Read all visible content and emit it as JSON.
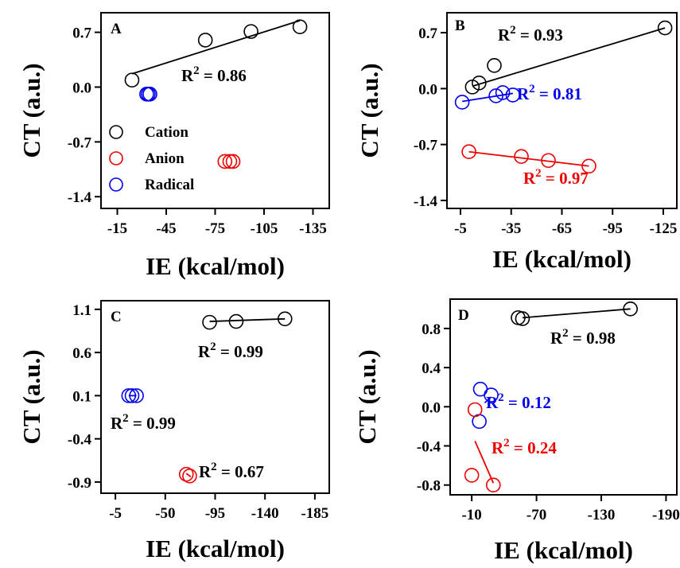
{
  "chart_data": [
    {
      "panel": "A",
      "type": "scatter",
      "xlabel": "IE (kcal/mol)",
      "ylabel": "CT (a.u.)",
      "xlim": [
        -5,
        -145
      ],
      "ylim": [
        -1.55,
        0.95
      ],
      "xticks": [
        -15,
        -45,
        -75,
        -105,
        -135
      ],
      "yticks": [
        0.7,
        0.0,
        -0.7,
        -1.4
      ],
      "xtick_labels": [
        "-15",
        "-45",
        "-75",
        "-105",
        "-135"
      ],
      "ytick_labels": [
        "0.7",
        "0.0",
        "-0.7",
        "-1.4"
      ],
      "legend": {
        "position": "left",
        "entries": [
          {
            "label": "Cation",
            "color": "#000000"
          },
          {
            "label": "Anion",
            "color": "#ee0000"
          },
          {
            "label": "Radical",
            "color": "#0000ee"
          }
        ]
      },
      "series": [
        {
          "name": "Cation",
          "color": "#000000",
          "points": [
            {
              "x": -24,
              "y": 0.09
            },
            {
              "x": -69,
              "y": 0.6
            },
            {
              "x": -97,
              "y": 0.71
            },
            {
              "x": -127,
              "y": 0.77
            }
          ],
          "fit": {
            "x": [
              -24,
              -127
            ],
            "y": [
              0.17,
              0.85
            ]
          },
          "r2": "R² = 0.86"
        },
        {
          "name": "Anion",
          "color": "#ee0000",
          "points": [
            {
              "x": -81,
              "y": -0.95
            },
            {
              "x": -84,
              "y": -0.95
            },
            {
              "x": -86,
              "y": -0.95
            }
          ],
          "fit": null
        },
        {
          "name": "Radical",
          "color": "#0000ee",
          "points": [
            {
              "x": -33,
              "y": -0.09
            },
            {
              "x": -34,
              "y": -0.09
            },
            {
              "x": -35,
              "y": -0.09
            }
          ],
          "fit": null
        }
      ],
      "r2_labels": [
        {
          "text": "R",
          "sup": "2",
          "rest": " = 0.86",
          "color": "#000000"
        }
      ]
    },
    {
      "panel": "B",
      "type": "scatter",
      "xlabel": "IE (kcal/mol)",
      "ylabel": "CT (a.u.)",
      "xlim": [
        3,
        -133
      ],
      "ylim": [
        -1.5,
        0.95
      ],
      "xticks": [
        -5,
        -35,
        -65,
        -95,
        -125
      ],
      "yticks": [
        0.7,
        0.0,
        -0.7,
        -1.4
      ],
      "xtick_labels": [
        "-5",
        "-35",
        "-65",
        "-95",
        "-125"
      ],
      "ytick_labels": [
        "0.7",
        "0.0",
        "-0.7",
        "-1.4"
      ],
      "series": [
        {
          "name": "Cation",
          "color": "#000000",
          "points": [
            {
              "x": -12,
              "y": 0.02
            },
            {
              "x": -16,
              "y": 0.07
            },
            {
              "x": -25,
              "y": 0.29
            },
            {
              "x": -126,
              "y": 0.76
            }
          ],
          "fit": {
            "x": [
              -12,
              -126
            ],
            "y": [
              0.03,
              0.76
            ]
          }
        },
        {
          "name": "Radical",
          "color": "#0000ee",
          "points": [
            {
              "x": -6,
              "y": -0.17
            },
            {
              "x": -26,
              "y": -0.09
            },
            {
              "x": -30,
              "y": -0.05
            },
            {
              "x": -36,
              "y": -0.08
            }
          ],
          "fit": {
            "x": [
              -6,
              -36
            ],
            "y": [
              -0.16,
              -0.06
            ]
          }
        },
        {
          "name": "Anion",
          "color": "#ee0000",
          "points": [
            {
              "x": -10,
              "y": -0.79
            },
            {
              "x": -41,
              "y": -0.85
            },
            {
              "x": -57,
              "y": -0.9
            },
            {
              "x": -81,
              "y": -0.97
            }
          ],
          "fit": {
            "x": [
              -10,
              -81
            ],
            "y": [
              -0.79,
              -0.97
            ]
          }
        }
      ],
      "r2_labels": [
        {
          "text": "R",
          "sup": "2",
          "rest": " = 0.93",
          "color": "#000000"
        },
        {
          "text": "R",
          "sup": "2",
          "rest": " = 0.81",
          "color": "#0000ee"
        },
        {
          "text": "R",
          "sup": "2",
          "rest": " = 0.97",
          "color": "#ee0000"
        }
      ]
    },
    {
      "panel": "C",
      "type": "scatter",
      "xlabel": "IE (kcal/mol)",
      "ylabel": "CT (a.u.)",
      "xlim": [
        8,
        -198
      ],
      "ylim": [
        -1.03,
        1.2
      ],
      "xticks": [
        -5,
        -50,
        -95,
        -140,
        -185
      ],
      "yticks": [
        1.1,
        0.6,
        0.1,
        -0.4,
        -0.9
      ],
      "xtick_labels": [
        "-5",
        "-50",
        "-95",
        "-140",
        "-185"
      ],
      "ytick_labels": [
        "1.1",
        "0.6",
        "0.1",
        "-0.4",
        "-0.9"
      ],
      "series": [
        {
          "name": "Cation",
          "color": "#000000",
          "points": [
            {
              "x": -90,
              "y": 0.95
            },
            {
              "x": -114,
              "y": 0.96
            },
            {
              "x": -158,
              "y": 0.99
            }
          ],
          "fit": {
            "x": [
              -90,
              -158
            ],
            "y": [
              0.96,
              0.99
            ]
          }
        },
        {
          "name": "Radical",
          "color": "#0000ee",
          "points": [
            {
              "x": -17,
              "y": 0.1
            },
            {
              "x": -20,
              "y": 0.1
            },
            {
              "x": -24,
              "y": 0.1
            }
          ],
          "fit": {
            "x": [
              -17,
              -24
            ],
            "y": [
              0.1,
              0.1
            ]
          }
        },
        {
          "name": "Anion",
          "color": "#ee0000",
          "points": [
            {
              "x": -69,
              "y": -0.81
            },
            {
              "x": -72,
              "y": -0.83
            }
          ],
          "fit": {
            "x": [
              -69,
              -73
            ],
            "y": [
              -0.8,
              -0.84
            ]
          }
        }
      ],
      "r2_labels": [
        {
          "text": "R",
          "sup": "2",
          "rest": " = 0.99",
          "color": "#000000"
        },
        {
          "text": "R",
          "sup": "2",
          "rest": " = 0.99",
          "color": "#000000"
        },
        {
          "text": "R",
          "sup": "2",
          "rest": " = 0.67",
          "color": "#000000"
        }
      ]
    },
    {
      "panel": "D",
      "type": "scatter",
      "xlabel": "IE (kcal/mol)",
      "ylabel": "CT (a.u.)",
      "xlim": [
        10,
        -200
      ],
      "ylim": [
        -0.9,
        1.1
      ],
      "xticks": [
        -10,
        -70,
        -130,
        -190
      ],
      "yticks": [
        0.8,
        0.4,
        0.0,
        -0.4,
        -0.8
      ],
      "xtick_labels": [
        "-10",
        "-70",
        "-130",
        "-190"
      ],
      "ytick_labels": [
        "0.8",
        "0.4",
        "0.0",
        "-0.4",
        "-0.8"
      ],
      "series": [
        {
          "name": "Cation",
          "color": "#000000",
          "points": [
            {
              "x": -53,
              "y": 0.91
            },
            {
              "x": -57,
              "y": 0.9
            },
            {
              "x": -157,
              "y": 1.0
            }
          ],
          "fit": {
            "x": [
              -57,
              -157
            ],
            "y": [
              0.91,
              1.0
            ]
          }
        },
        {
          "name": "Radical",
          "color": "#0000ee",
          "points": [
            {
              "x": -18,
              "y": 0.18
            },
            {
              "x": -28,
              "y": 0.12
            },
            {
              "x": -17,
              "y": -0.15
            }
          ],
          "fit": {
            "x": [
              -22,
              -28
            ],
            "y": [
              0.04,
              0.1
            ]
          }
        },
        {
          "name": "Anion",
          "color": "#ee0000",
          "points": [
            {
              "x": -13,
              "y": -0.03
            },
            {
              "x": -10,
              "y": -0.7
            },
            {
              "x": -30,
              "y": -0.8
            }
          ],
          "fit": {
            "x": [
              -13,
              -30
            ],
            "y": [
              -0.35,
              -0.78
            ]
          }
        }
      ],
      "r2_labels": [
        {
          "text": "R",
          "sup": "2",
          "rest": " = 0.98",
          "color": "#000000"
        },
        {
          "text": "R",
          "sup": "2",
          "rest": " = 0.12",
          "color": "#0000ee"
        },
        {
          "text": "R",
          "sup": "2",
          "rest": " = 0.24",
          "color": "#ee0000"
        }
      ]
    }
  ]
}
